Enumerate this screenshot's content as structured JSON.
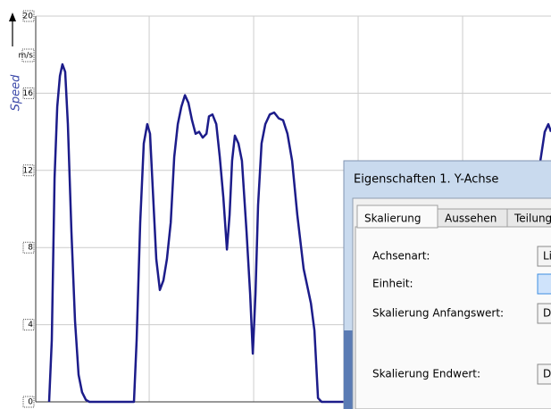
{
  "chart_data": {
    "type": "line",
    "y_label": "Speed",
    "y_unit": "m/s",
    "color": "#1c1c8a",
    "grid": true,
    "x": [
      2.1,
      3.4,
      4.7,
      6.0,
      7.3,
      8.5,
      9.8,
      11.1,
      12.8,
      14.5,
      16.2,
      17.9,
      19.7,
      21.4,
      42.7,
      44.0,
      45.7,
      47.4,
      49.1,
      50.4,
      51.7,
      53.4,
      55.1,
      56.8,
      58.5,
      60.3,
      62.0,
      63.7,
      65.4,
      67.1,
      68.8,
      70.5,
      72.2,
      73.9,
      75.6,
      77.4,
      78.6,
      80.3,
      82.1,
      83.8,
      85.5,
      87.2,
      88.5,
      89.7,
      91.0,
      92.7,
      94.4,
      96.6,
      98.3,
      99.6,
      100.9,
      102.1,
      103.8,
      105.6,
      107.7,
      109.8,
      112.0,
      114.1,
      116.2,
      118.4,
      120.9,
      123.9,
      127.4,
      129.1,
      130.8,
      132.5,
      143.2,
      237.2,
      239.3,
      241.0,
      242.3
    ],
    "values": [
      0,
      3.2,
      11.6,
      15.3,
      16.9,
      17.5,
      17.1,
      14.4,
      8.8,
      4.2,
      1.4,
      0.5,
      0.1,
      0,
      0,
      3.2,
      9.3,
      13.4,
      14.4,
      13.9,
      11.1,
      7.4,
      5.8,
      6.3,
      7.4,
      9.3,
      12.7,
      14.4,
      15.3,
      15.9,
      15.5,
      14.6,
      13.9,
      14.0,
      13.7,
      13.9,
      14.8,
      14.9,
      14.4,
      12.7,
      10.6,
      7.9,
      9.7,
      12.5,
      13.8,
      13.4,
      12.5,
      8.8,
      5.6,
      2.5,
      5.6,
      10.2,
      13.4,
      14.4,
      14.9,
      15.0,
      14.7,
      14.6,
      13.9,
      12.5,
      9.7,
      6.9,
      5.1,
      3.7,
      0.2,
      0,
      0,
      12.5,
      14.0,
      14.4,
      14.0
    ],
    "xlim": [
      -4.3,
      242.3
    ],
    "xticks": [
      50,
      100,
      150,
      200
    ],
    "ylim": [
      0,
      20
    ],
    "yticks": [
      0,
      4,
      8,
      12,
      16,
      20
    ]
  },
  "dialog": {
    "title": "Eigenschaften 1. Y-Achse",
    "tabs": [
      "Skalierung",
      "Aussehen",
      "Teilung"
    ],
    "fields": [
      {
        "label": "Achsenart:",
        "value": "Li"
      },
      {
        "label": "Einheit:"
      },
      {
        "label": "Skalierung Anfangswert:",
        "value": "D"
      },
      {
        "label": "Skalierung Endwert:",
        "value": "D"
      }
    ]
  }
}
